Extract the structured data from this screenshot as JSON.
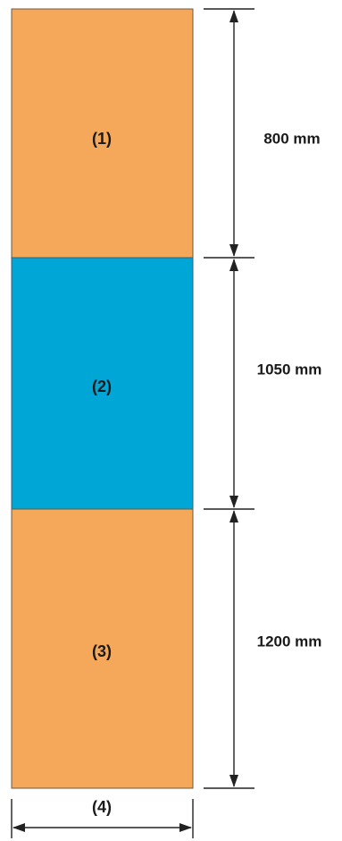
{
  "segments": [
    {
      "label": "(1)",
      "dimension": "800 mm",
      "color": "#F5A85A"
    },
    {
      "label": "(2)",
      "dimension": "1050 mm",
      "color": "#00A6D6"
    },
    {
      "label": "(3)",
      "dimension": "1200 mm",
      "color": "#F5A85A"
    }
  ],
  "width_label": "(4)"
}
